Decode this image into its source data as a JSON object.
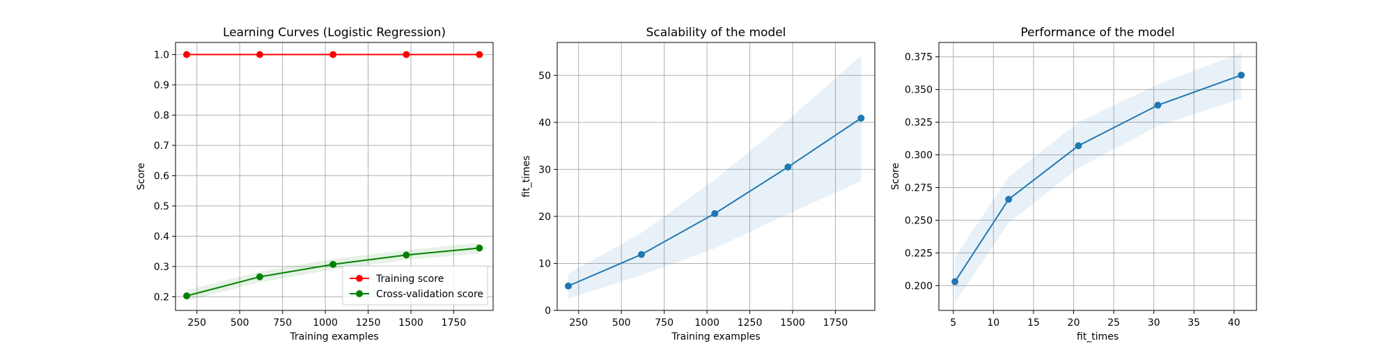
{
  "figure": {
    "colors": {
      "training": "#ff0000",
      "cv": "#008000",
      "line": "#1f77b4",
      "band": "#1f77b4",
      "grid": "#b0b0b0"
    }
  },
  "chart_data": [
    {
      "type": "line",
      "title": "Learning Curves (Logistic Regression)",
      "xlabel": "Training examples",
      "ylabel": "Score",
      "xlim": [
        125,
        1980
      ],
      "ylim": [
        0.155,
        1.04
      ],
      "xticks": [
        250,
        500,
        750,
        1000,
        1250,
        1500,
        1750
      ],
      "yticks": [
        0.2,
        0.3,
        0.4,
        0.5,
        0.6,
        0.7,
        0.8,
        0.9,
        1.0
      ],
      "ytick_format": 1,
      "grid": true,
      "legend": "lower-right",
      "series": [
        {
          "name": "Training score",
          "color": "red",
          "x": [
            190,
            617,
            1045,
            1473,
            1900
          ],
          "y": [
            1.0,
            1.0,
            1.0,
            1.0,
            1.0
          ],
          "band_lower": [
            1.0,
            1.0,
            1.0,
            1.0,
            1.0
          ],
          "band_upper": [
            1.0,
            1.0,
            1.0,
            1.0,
            1.0
          ]
        },
        {
          "name": "Cross-validation score",
          "color": "green",
          "x": [
            190,
            617,
            1045,
            1473,
            1900
          ],
          "y": [
            0.203,
            0.266,
            0.307,
            0.338,
            0.361
          ],
          "band_lower": [
            0.187,
            0.248,
            0.29,
            0.322,
            0.343
          ],
          "band_upper": [
            0.222,
            0.283,
            0.325,
            0.354,
            0.378
          ]
        }
      ]
    },
    {
      "type": "line",
      "title": "Scalability of the model",
      "xlabel": "Training examples",
      "ylabel": "fit_times",
      "xlim": [
        125,
        1980
      ],
      "ylim": [
        0,
        57
      ],
      "xticks": [
        250,
        500,
        750,
        1000,
        1250,
        1500,
        1750
      ],
      "yticks": [
        0,
        10,
        20,
        30,
        40,
        50
      ],
      "ytick_format": 0,
      "grid": true,
      "series": [
        {
          "color": "blue",
          "x": [
            190,
            617,
            1045,
            1473,
            1900
          ],
          "y": [
            5.2,
            11.9,
            20.6,
            30.5,
            40.9
          ],
          "band_lower": [
            2.5,
            7.5,
            13.2,
            20.5,
            27.5
          ],
          "band_upper": [
            7.8,
            16.5,
            27.8,
            40.5,
            54.2
          ]
        }
      ]
    },
    {
      "type": "line",
      "title": "Performance of the model",
      "xlabel": "fit_times",
      "ylabel": "Score",
      "xlim": [
        3.2,
        42.8
      ],
      "ylim": [
        0.181,
        0.386
      ],
      "xticks": [
        5,
        10,
        15,
        20,
        25,
        30,
        35,
        40
      ],
      "yticks": [
        0.2,
        0.225,
        0.25,
        0.275,
        0.3,
        0.325,
        0.35,
        0.375
      ],
      "ytick_format": 3,
      "grid": true,
      "series": [
        {
          "color": "blue",
          "x": [
            5.2,
            11.9,
            20.6,
            30.5,
            40.9
          ],
          "y": [
            0.203,
            0.266,
            0.307,
            0.338,
            0.361
          ],
          "band_lower": [
            0.187,
            0.248,
            0.29,
            0.322,
            0.343
          ],
          "band_upper": [
            0.222,
            0.283,
            0.325,
            0.354,
            0.378
          ]
        }
      ]
    }
  ]
}
